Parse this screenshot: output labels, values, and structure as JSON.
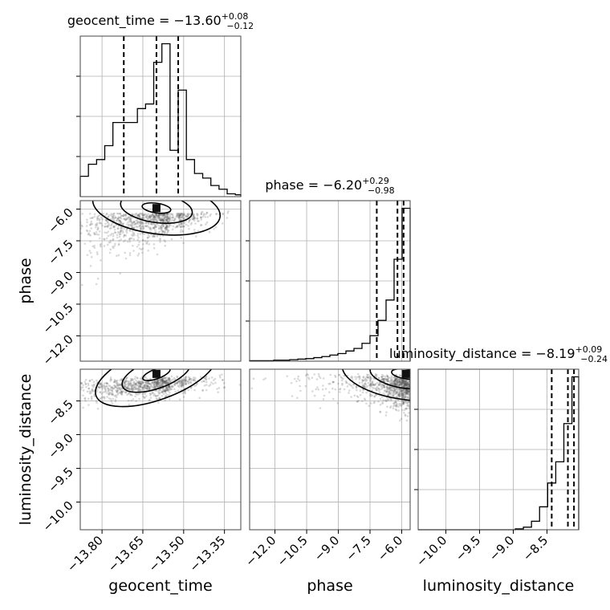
{
  "chart_data": {
    "type": "scatter",
    "parameters": [
      "geocent_time",
      "phase",
      "luminosity_distance"
    ],
    "ranges": {
      "geocent_time": [
        -13.88,
        -13.29
      ],
      "phase": [
        -13.2,
        -5.6
      ],
      "luminosity_distance": [
        -10.41,
        -8.03
      ]
    },
    "ticks": {
      "geocent_time": [
        -13.8,
        -13.65,
        -13.5,
        -13.35
      ],
      "phase": [
        -12.0,
        -10.5,
        -9.0,
        -7.5,
        -6.0
      ],
      "luminosity_distance": [
        -10.0,
        -9.5,
        -9.0,
        -8.5
      ]
    },
    "tick_labels": {
      "geocent_time": [
        "−13.80",
        "−13.65",
        "−13.50",
        "−13.35"
      ],
      "phase": [
        "−12.0",
        "−10.5",
        "−9.0",
        "−7.5",
        "−6.0"
      ],
      "luminosity_distance": [
        "−10.0",
        "−9.5",
        "−9.0",
        "−8.5"
      ]
    },
    "axis_labels": {
      "geocent_time": "geocent_time",
      "phase": "phase",
      "luminosity_distance": "luminosity_distance"
    },
    "titles": [
      {
        "param": "geocent_time",
        "prefix": "geocent_time = −13.60",
        "plus": "+0.08",
        "minus": "−0.12"
      },
      {
        "param": "phase",
        "prefix": "phase = −6.20",
        "plus": "+0.29",
        "minus": "−0.98"
      },
      {
        "param": "luminosity_distance",
        "prefix": "luminosity_distance = −8.19",
        "plus": "+0.09",
        "minus": "−0.24"
      }
    ],
    "quantiles": {
      "geocent_time": [
        -13.72,
        -13.6,
        -13.52
      ],
      "phase": [
        -7.18,
        -6.2,
        -5.91
      ],
      "luminosity_distance": [
        -8.43,
        -8.19,
        -8.1
      ]
    },
    "histograms": {
      "geocent_time": {
        "edges": [
          -13.88,
          -13.85,
          -13.82,
          -13.79,
          -13.76,
          -13.73,
          -13.7,
          -13.67,
          -13.64,
          -13.61,
          -13.58,
          -13.55,
          -13.52,
          -13.49,
          -13.46,
          -13.43,
          -13.4,
          -13.37,
          -13.34,
          -13.31,
          -13.29
        ],
        "counts": [
          22,
          35,
          40,
          55,
          80,
          80,
          80,
          95,
          100,
          145,
          165,
          50,
          115,
          40,
          25,
          20,
          12,
          8,
          3,
          2
        ]
      },
      "phase": {
        "edges": [
          -13.2,
          -12.82,
          -12.44,
          -12.06,
          -11.68,
          -11.3,
          -10.92,
          -10.54,
          -10.16,
          -9.78,
          -9.4,
          -9.02,
          -8.64,
          -8.26,
          -7.88,
          -7.5,
          -7.12,
          -6.74,
          -6.36,
          -5.98,
          -5.6
        ],
        "counts": [
          1,
          1,
          1,
          2,
          2,
          3,
          4,
          5,
          7,
          9,
          12,
          15,
          20,
          25,
          35,
          50,
          80,
          120,
          200,
          300
        ]
      },
      "luminosity_distance": {
        "edges": [
          -10.41,
          -10.29,
          -10.17,
          -10.05,
          -9.93,
          -9.81,
          -9.69,
          -9.57,
          -9.45,
          -9.33,
          -9.21,
          -9.09,
          -8.97,
          -8.85,
          -8.73,
          -8.61,
          -8.49,
          -8.37,
          -8.25,
          -8.13,
          -8.03
        ],
        "counts": [
          0,
          0,
          0,
          0,
          0,
          0,
          0,
          0,
          0,
          0,
          0,
          0,
          1,
          3,
          10,
          27,
          55,
          80,
          125,
          180
        ]
      }
    },
    "contour_peaks": [
      {
        "x": "geocent_time",
        "y": "phase",
        "at": [
          -13.6,
          -5.95
        ]
      },
      {
        "x": "geocent_time",
        "y": "luminosity_distance",
        "at": [
          -13.6,
          -8.1
        ]
      },
      {
        "x": "phase",
        "y": "luminosity_distance",
        "at": [
          -5.8,
          -8.1
        ]
      }
    ]
  }
}
